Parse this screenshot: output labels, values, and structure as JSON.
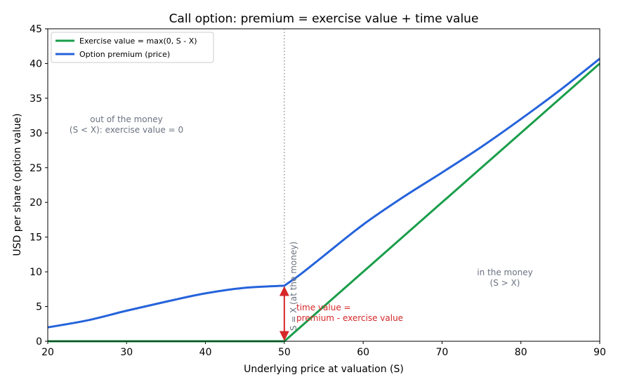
{
  "chart_data": {
    "type": "line",
    "title": "Call option: premium = exercise value + time value",
    "xlabel": "Underlying price at valuation (S)",
    "ylabel": "USD per share (option value)",
    "xlim": [
      20,
      90
    ],
    "ylim": [
      0,
      45
    ],
    "xticks": [
      "20",
      "30",
      "40",
      "50",
      "60",
      "70",
      "80",
      "90"
    ],
    "yticks": [
      "0",
      "5",
      "10",
      "15",
      "20",
      "25",
      "30",
      "35",
      "40",
      "45"
    ],
    "grid": false,
    "legend": "upper-left",
    "series": [
      {
        "name": "Exercise value = max(0, S - X)",
        "color": "#1a9e4a",
        "x": [
          20,
          50,
          90
        ],
        "y": [
          0,
          0,
          40
        ]
      },
      {
        "name": "Option premium (price)",
        "color": "#2563db",
        "x": [
          20,
          25,
          30,
          35,
          40,
          45,
          50,
          52,
          55,
          60,
          65,
          70,
          75,
          80,
          85,
          90
        ],
        "y": [
          2.0,
          3.0,
          4.4,
          5.7,
          6.9,
          7.7,
          8.0,
          9.6,
          12.3,
          16.8,
          20.7,
          24.3,
          28.0,
          32.0,
          36.2,
          40.7
        ]
      }
    ],
    "annotations": {
      "vline_label": "S = X (at the money)",
      "vline_x": 50,
      "otm_line1": "out of the money",
      "otm_line2": "(S < X): exercise value = 0",
      "itm_line1": "in the money",
      "itm_line2": "(S > X)",
      "time_value_line1": "time value =",
      "time_value_line2": "premium - exercise value",
      "arrow_x": 50,
      "arrow_from_y": 0,
      "arrow_to_y": 8.0,
      "annotation_color": "#d62728",
      "text_color": "#6b7280"
    }
  }
}
